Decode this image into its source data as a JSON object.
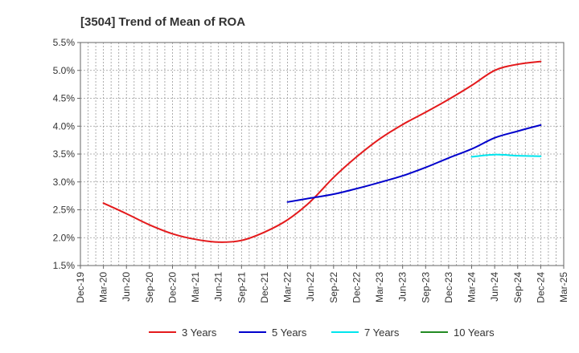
{
  "chart_data": {
    "type": "line",
    "title": "[3504]  Trend of Mean of ROA",
    "xlabel": "",
    "ylabel": "",
    "ylim": [
      1.5,
      5.5
    ],
    "y_ticks": [
      "1.5%",
      "2.0%",
      "2.5%",
      "3.0%",
      "3.5%",
      "4.0%",
      "4.5%",
      "5.0%",
      "5.5%"
    ],
    "x_ticks": [
      "Dec-19",
      "Mar-20",
      "Jun-20",
      "Sep-20",
      "Dec-20",
      "Mar-21",
      "Jun-21",
      "Sep-21",
      "Dec-21",
      "Mar-22",
      "Jun-22",
      "Sep-22",
      "Dec-22",
      "Mar-23",
      "Jun-23",
      "Sep-23",
      "Dec-23",
      "Mar-24",
      "Jun-24",
      "Sep-24",
      "Dec-24",
      "Mar-25"
    ],
    "grid": true,
    "legend_position": "bottom",
    "series": [
      {
        "name": "3 Years",
        "color": "#e41a1c",
        "points": [
          [
            "Mar-20",
            2.62
          ],
          [
            "Jun-20",
            2.43
          ],
          [
            "Sep-20",
            2.23
          ],
          [
            "Dec-20",
            2.07
          ],
          [
            "Mar-21",
            1.97
          ],
          [
            "Jun-21",
            1.92
          ],
          [
            "Sep-21",
            1.95
          ],
          [
            "Dec-21",
            2.1
          ],
          [
            "Mar-22",
            2.32
          ],
          [
            "Jun-22",
            2.65
          ],
          [
            "Sep-22",
            3.08
          ],
          [
            "Dec-22",
            3.45
          ],
          [
            "Mar-23",
            3.77
          ],
          [
            "Jun-23",
            4.03
          ],
          [
            "Sep-23",
            4.25
          ],
          [
            "Dec-23",
            4.48
          ],
          [
            "Mar-24",
            4.73
          ],
          [
            "Jun-24",
            5.0
          ],
          [
            "Sep-24",
            5.11
          ],
          [
            "Dec-24",
            5.16
          ]
        ]
      },
      {
        "name": "5 Years",
        "color": "#0000cc",
        "points": [
          [
            "Mar-22",
            2.64
          ],
          [
            "Jun-22",
            2.71
          ],
          [
            "Sep-22",
            2.78
          ],
          [
            "Dec-22",
            2.88
          ],
          [
            "Mar-23",
            2.99
          ],
          [
            "Jun-23",
            3.11
          ],
          [
            "Sep-23",
            3.26
          ],
          [
            "Dec-23",
            3.43
          ],
          [
            "Mar-24",
            3.59
          ],
          [
            "Jun-24",
            3.79
          ],
          [
            "Sep-24",
            3.91
          ],
          [
            "Dec-24",
            4.02
          ]
        ]
      },
      {
        "name": "7 Years",
        "color": "#00e5ee",
        "points": [
          [
            "Mar-24",
            3.45
          ],
          [
            "Jun-24",
            3.49
          ],
          [
            "Sep-24",
            3.47
          ],
          [
            "Dec-24",
            3.46
          ]
        ]
      },
      {
        "name": "10 Years",
        "color": "#228b22",
        "points": []
      }
    ]
  }
}
